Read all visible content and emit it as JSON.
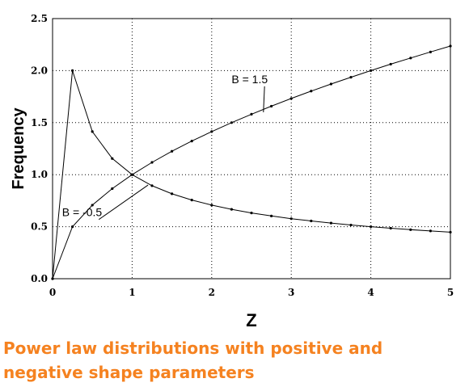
{
  "chart_data": {
    "type": "line",
    "title": "",
    "xlabel": "Z",
    "ylabel": "Frequency",
    "xlim": [
      0,
      5
    ],
    "ylim": [
      0,
      2.5
    ],
    "x_ticks": [
      "0",
      "1",
      "2",
      "3",
      "4",
      "5"
    ],
    "y_ticks": [
      "0.0",
      "0.5",
      "1.0",
      "1.5",
      "2.0",
      "2.5"
    ],
    "grid": "dotted",
    "series": [
      {
        "name": "B = 1.5",
        "x": [
          0,
          0.25,
          0.5,
          0.75,
          1.0,
          1.25,
          1.5,
          1.75,
          2.0,
          2.25,
          2.5,
          2.75,
          3.0,
          3.25,
          3.5,
          3.75,
          4.0,
          4.25,
          4.5,
          4.75,
          5.0
        ],
        "values": [
          0,
          0.5,
          0.707,
          0.866,
          1.0,
          1.118,
          1.225,
          1.323,
          1.414,
          1.5,
          1.581,
          1.658,
          1.732,
          1.803,
          1.871,
          1.936,
          2.0,
          2.062,
          2.121,
          2.179,
          2.236
        ]
      },
      {
        "name": "B = -0.5",
        "x": [
          0,
          0.25,
          0.5,
          0.75,
          1.0,
          1.25,
          1.5,
          1.75,
          2.0,
          2.25,
          2.5,
          2.75,
          3.0,
          3.25,
          3.5,
          3.75,
          4.0,
          4.25,
          4.5,
          4.75,
          5.0
        ],
        "values": [
          0,
          2.0,
          1.414,
          1.155,
          1.0,
          0.894,
          0.816,
          0.756,
          0.707,
          0.667,
          0.632,
          0.603,
          0.577,
          0.555,
          0.535,
          0.516,
          0.5,
          0.485,
          0.471,
          0.459,
          0.447
        ]
      }
    ],
    "annotations": [
      {
        "text": "B = 1.5",
        "x": 2.25,
        "y": 1.88,
        "arrow_to": [
          2.65,
          1.6
        ]
      },
      {
        "text": "B = -0.5",
        "x": 0.12,
        "y": 0.6,
        "arrow_to": [
          1.2,
          0.9
        ]
      }
    ]
  },
  "caption": {
    "line1": "Power law distributions with positive and",
    "line2": "negative shape parameters"
  },
  "colors": {
    "line": "#000000",
    "grid": "#000000",
    "caption": "#f58220"
  }
}
